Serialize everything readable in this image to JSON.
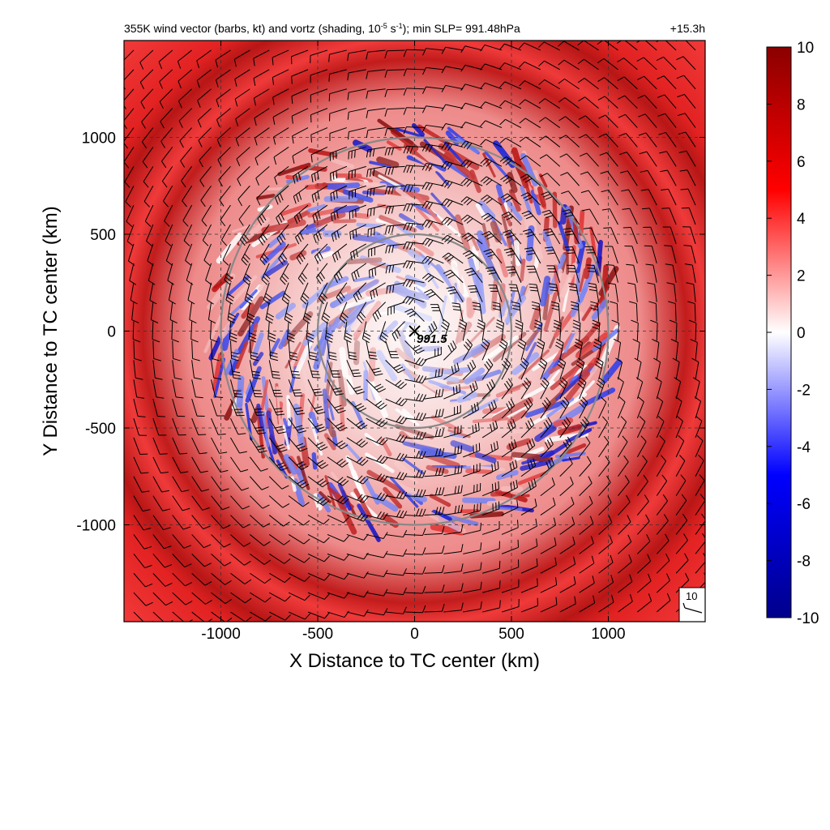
{
  "chart_data": {
    "type": "heatmap",
    "title": "355K wind vector (barbs, kt) and vortz (shading, 10",
    "title_exponent": "-5",
    "title_unit_base": " s",
    "title_unit_exponent": "-1",
    "title_tail": "); min SLP= 991.48hPa",
    "forecast_hour": "+15.3h",
    "xlabel": "X Distance to TC center (km)",
    "ylabel": "Y Distance to TC center (km)",
    "xlim": [
      -1500,
      1500
    ],
    "ylim": [
      -1500,
      1500
    ],
    "x_ticks": [
      -1000,
      -500,
      0,
      500,
      1000
    ],
    "y_ticks": [
      1000,
      500,
      0,
      -500,
      -1000
    ],
    "x_tick_labels": [
      "-1000",
      "-500",
      "0",
      "500",
      "1000"
    ],
    "y_tick_labels": [
      "1000",
      "500",
      "0",
      "-500",
      "-1000"
    ],
    "grid": true,
    "range_rings_km": [
      500,
      1000
    ],
    "center": {
      "x": 0,
      "y": 0,
      "label": "991.5",
      "marker": "x-icon"
    },
    "barb_reference": {
      "label": "10",
      "speed_kt": 10
    },
    "colorbar": {
      "min": -10,
      "max": 10,
      "ticks": [
        10,
        8,
        6,
        4,
        2,
        0,
        -2,
        -4,
        -6,
        -8,
        -10
      ],
      "tick_labels": [
        "10",
        "8",
        "6",
        "4",
        "2",
        "0",
        "-2",
        "-4",
        "-6",
        "-8",
        "-10"
      ],
      "colors": [
        "#00008b",
        "#0000ff",
        "#ffffff",
        "#ff0000",
        "#8b0000"
      ]
    },
    "field": {
      "outer_ring_radius_km": 1200,
      "outer_value": 6,
      "inner_disorganized_radius_km": 1050,
      "inner_value_range": [
        -10,
        10
      ]
    }
  }
}
